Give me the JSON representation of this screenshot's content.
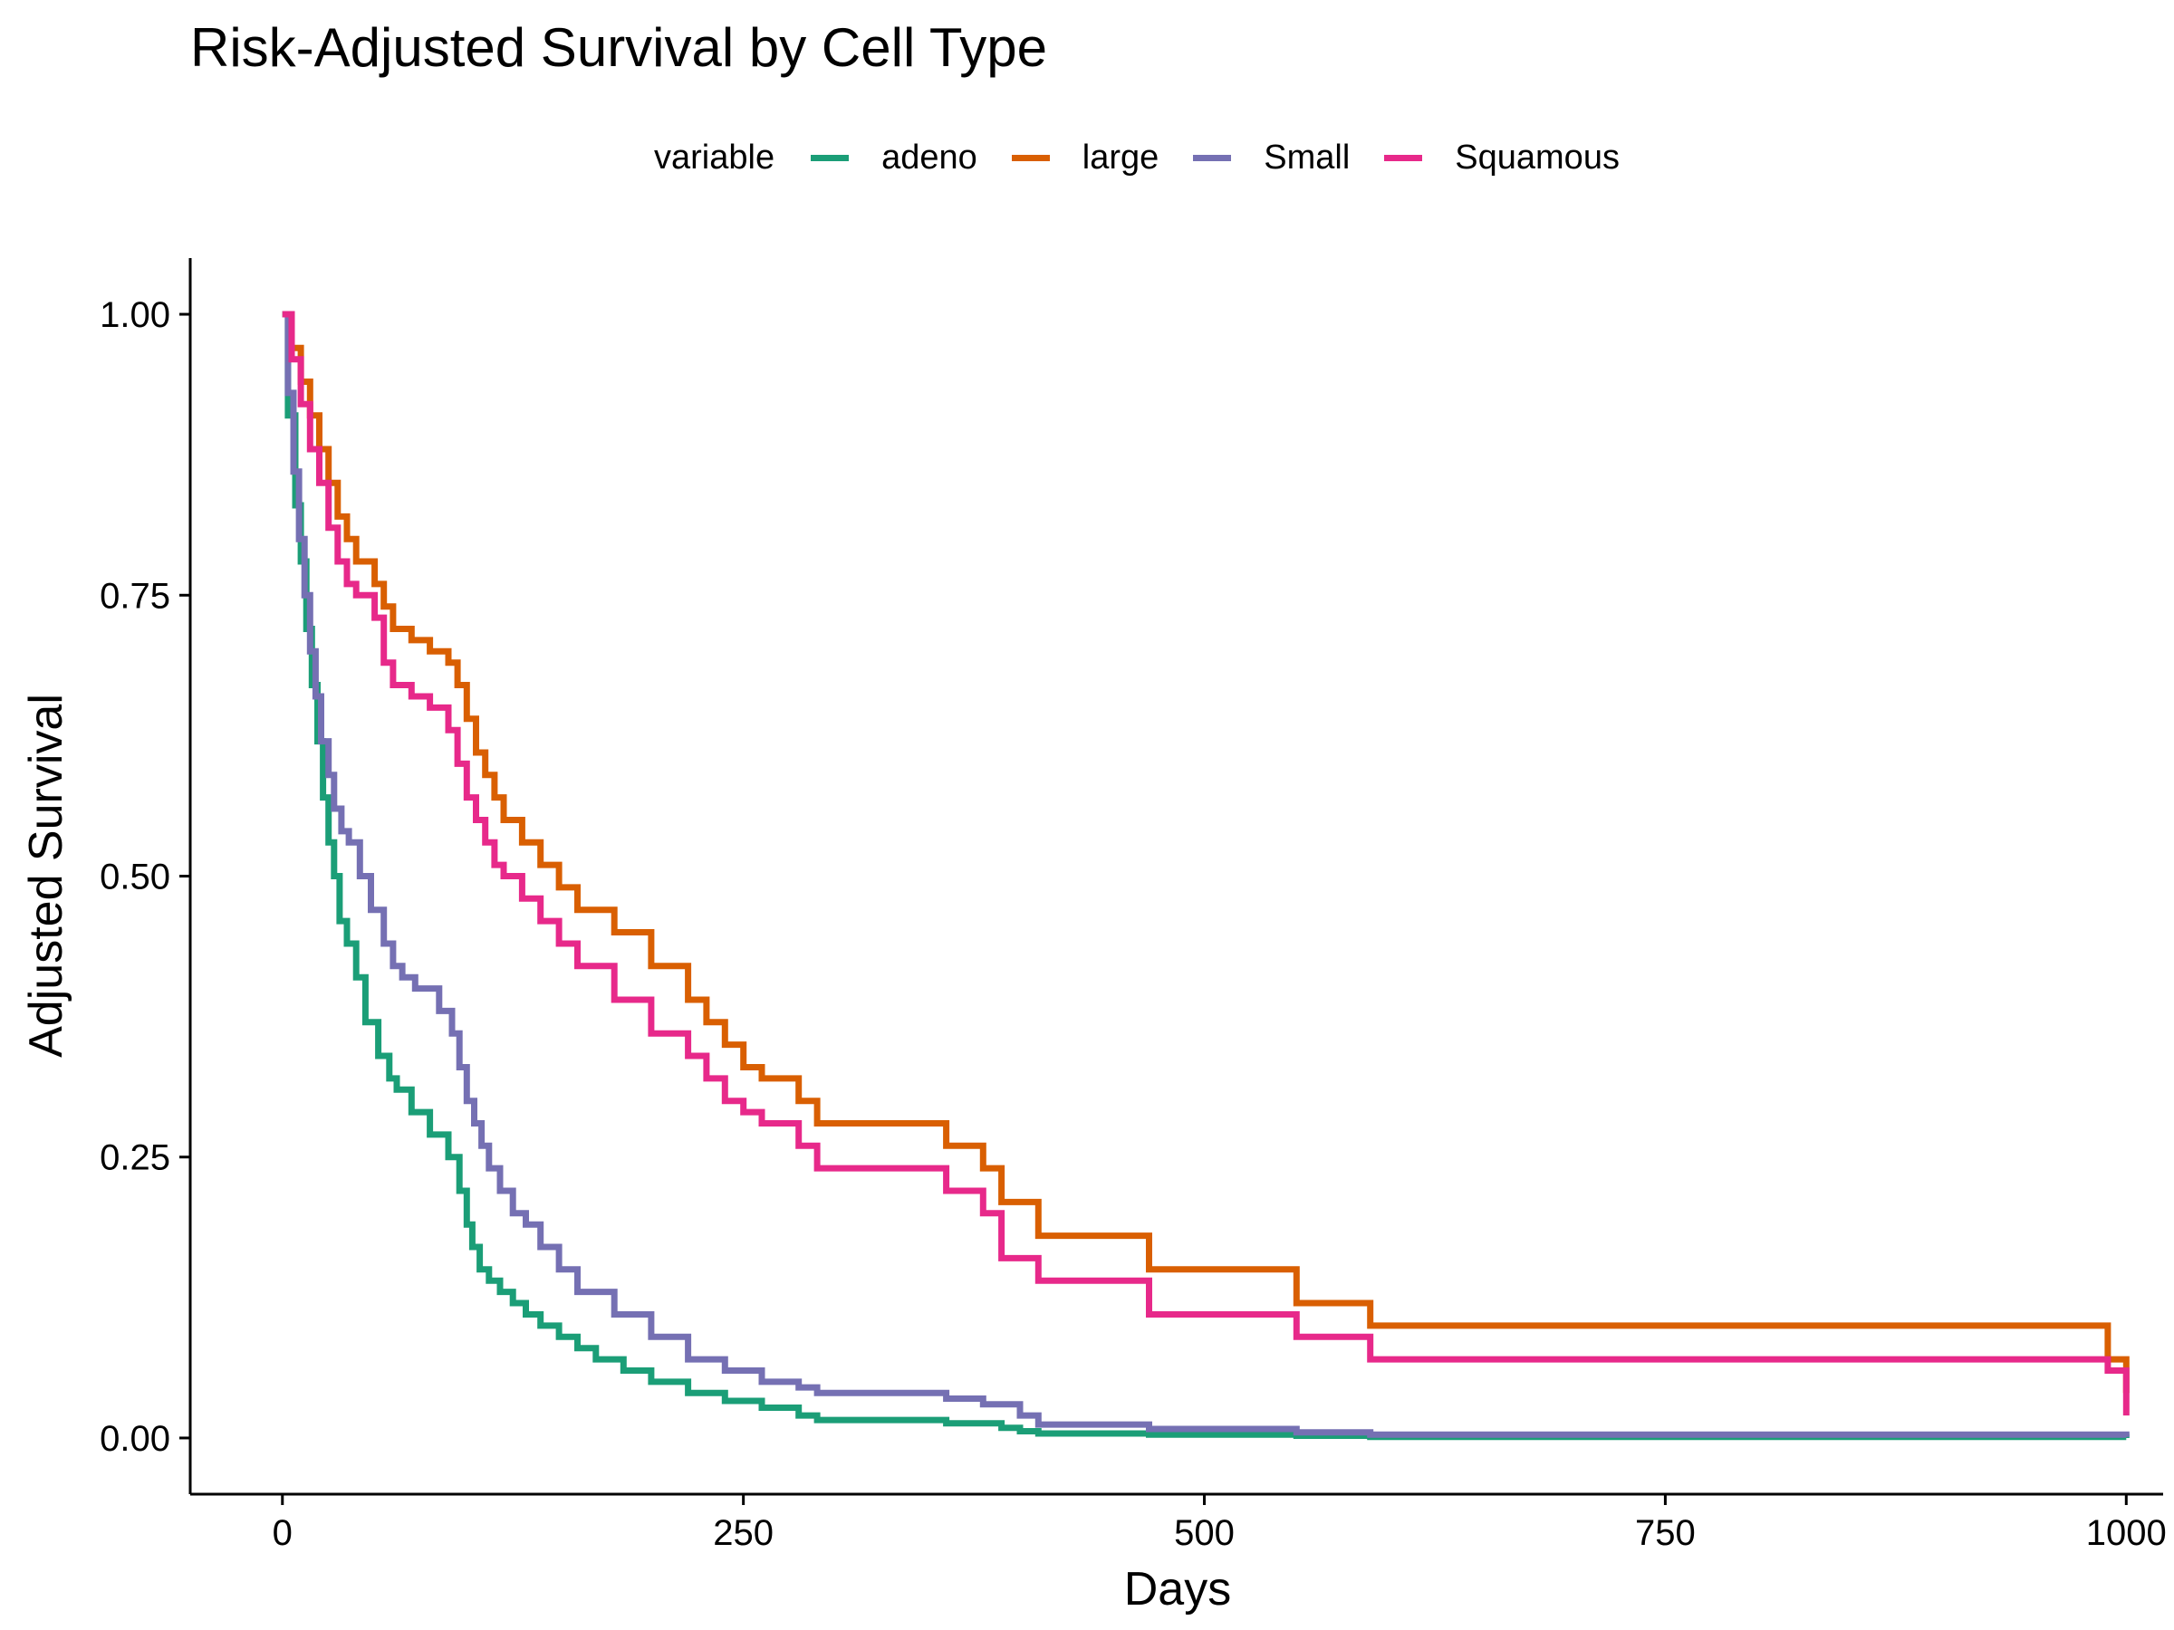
{
  "chart_data": {
    "type": "line",
    "title": "Risk-Adjusted Survival by Cell Type",
    "xlabel": "Days",
    "ylabel": "Adjusted Survival",
    "xlim": [
      -50,
      1020
    ],
    "ylim": [
      -0.05,
      1.05
    ],
    "xticks": [
      0,
      250,
      500,
      750,
      1000
    ],
    "xtick_labels": [
      "0",
      "250",
      "500",
      "750",
      "1000"
    ],
    "yticks": [
      0,
      0.25,
      0.5,
      0.75,
      1.0
    ],
    "ytick_labels": [
      "0.00",
      "0.25",
      "0.50",
      "0.75",
      "1.00"
    ],
    "legend_title": "variable",
    "legend_position": "top",
    "grid": false,
    "step": true,
    "series": [
      {
        "name": "adeno",
        "color": "#1b9e77",
        "x": [
          0,
          3,
          7,
          10,
          13,
          16,
          19,
          22,
          25,
          28,
          31,
          35,
          40,
          45,
          52,
          58,
          62,
          70,
          80,
          90,
          96,
          100,
          103,
          107,
          112,
          118,
          125,
          132,
          140,
          150,
          160,
          170,
          185,
          200,
          220,
          240,
          260,
          280,
          290,
          360,
          390,
          400,
          410,
          470,
          550,
          590,
          1000
        ],
        "y": [
          1.0,
          0.91,
          0.83,
          0.78,
          0.72,
          0.67,
          0.62,
          0.57,
          0.53,
          0.5,
          0.46,
          0.44,
          0.41,
          0.37,
          0.34,
          0.32,
          0.31,
          0.29,
          0.27,
          0.25,
          0.22,
          0.19,
          0.17,
          0.15,
          0.14,
          0.13,
          0.12,
          0.11,
          0.1,
          0.09,
          0.08,
          0.07,
          0.06,
          0.05,
          0.04,
          0.033,
          0.027,
          0.02,
          0.016,
          0.013,
          0.009,
          0.006,
          0.004,
          0.003,
          0.002,
          0.001,
          0.0
        ]
      },
      {
        "name": "large",
        "color": "#d95f02",
        "x": [
          0,
          5,
          10,
          15,
          20,
          25,
          30,
          35,
          40,
          50,
          55,
          60,
          70,
          80,
          90,
          95,
          100,
          105,
          110,
          115,
          120,
          130,
          140,
          150,
          160,
          180,
          200,
          220,
          230,
          240,
          250,
          260,
          280,
          290,
          360,
          380,
          390,
          410,
          470,
          550,
          590,
          990,
          1000
        ],
        "y": [
          1.0,
          0.97,
          0.94,
          0.91,
          0.88,
          0.85,
          0.82,
          0.8,
          0.78,
          0.76,
          0.74,
          0.72,
          0.71,
          0.7,
          0.69,
          0.67,
          0.64,
          0.61,
          0.59,
          0.57,
          0.55,
          0.53,
          0.51,
          0.49,
          0.47,
          0.45,
          0.42,
          0.39,
          0.37,
          0.35,
          0.33,
          0.32,
          0.3,
          0.28,
          0.26,
          0.24,
          0.21,
          0.18,
          0.15,
          0.12,
          0.1,
          0.07,
          0.04
        ]
      },
      {
        "name": "Small",
        "color": "#7570b3",
        "x": [
          0,
          3,
          6,
          9,
          12,
          15,
          18,
          21,
          25,
          28,
          32,
          36,
          42,
          48,
          55,
          60,
          65,
          72,
          85,
          92,
          96,
          100,
          104,
          108,
          112,
          118,
          125,
          132,
          140,
          150,
          160,
          180,
          200,
          220,
          240,
          260,
          280,
          290,
          360,
          380,
          400,
          410,
          470,
          550,
          590,
          1000
        ],
        "y": [
          1.0,
          0.93,
          0.86,
          0.8,
          0.75,
          0.7,
          0.66,
          0.62,
          0.59,
          0.56,
          0.54,
          0.53,
          0.5,
          0.47,
          0.44,
          0.42,
          0.41,
          0.4,
          0.38,
          0.36,
          0.33,
          0.3,
          0.28,
          0.26,
          0.24,
          0.22,
          0.2,
          0.19,
          0.17,
          0.15,
          0.13,
          0.11,
          0.09,
          0.07,
          0.06,
          0.05,
          0.045,
          0.04,
          0.035,
          0.03,
          0.02,
          0.012,
          0.008,
          0.005,
          0.003,
          0.001
        ]
      },
      {
        "name": "Squamous",
        "color": "#e7298a",
        "x": [
          0,
          5,
          10,
          15,
          20,
          25,
          30,
          35,
          40,
          50,
          55,
          60,
          70,
          80,
          90,
          95,
          100,
          105,
          110,
          115,
          120,
          130,
          140,
          150,
          160,
          180,
          200,
          220,
          230,
          240,
          250,
          260,
          280,
          290,
          360,
          380,
          390,
          410,
          470,
          550,
          590,
          990,
          1000
        ],
        "y": [
          1.0,
          0.96,
          0.92,
          0.88,
          0.85,
          0.81,
          0.78,
          0.76,
          0.75,
          0.73,
          0.69,
          0.67,
          0.66,
          0.65,
          0.63,
          0.6,
          0.57,
          0.55,
          0.53,
          0.51,
          0.5,
          0.48,
          0.46,
          0.44,
          0.42,
          0.39,
          0.36,
          0.34,
          0.32,
          0.3,
          0.29,
          0.28,
          0.26,
          0.24,
          0.22,
          0.2,
          0.16,
          0.14,
          0.11,
          0.09,
          0.07,
          0.06,
          0.02
        ]
      }
    ]
  }
}
